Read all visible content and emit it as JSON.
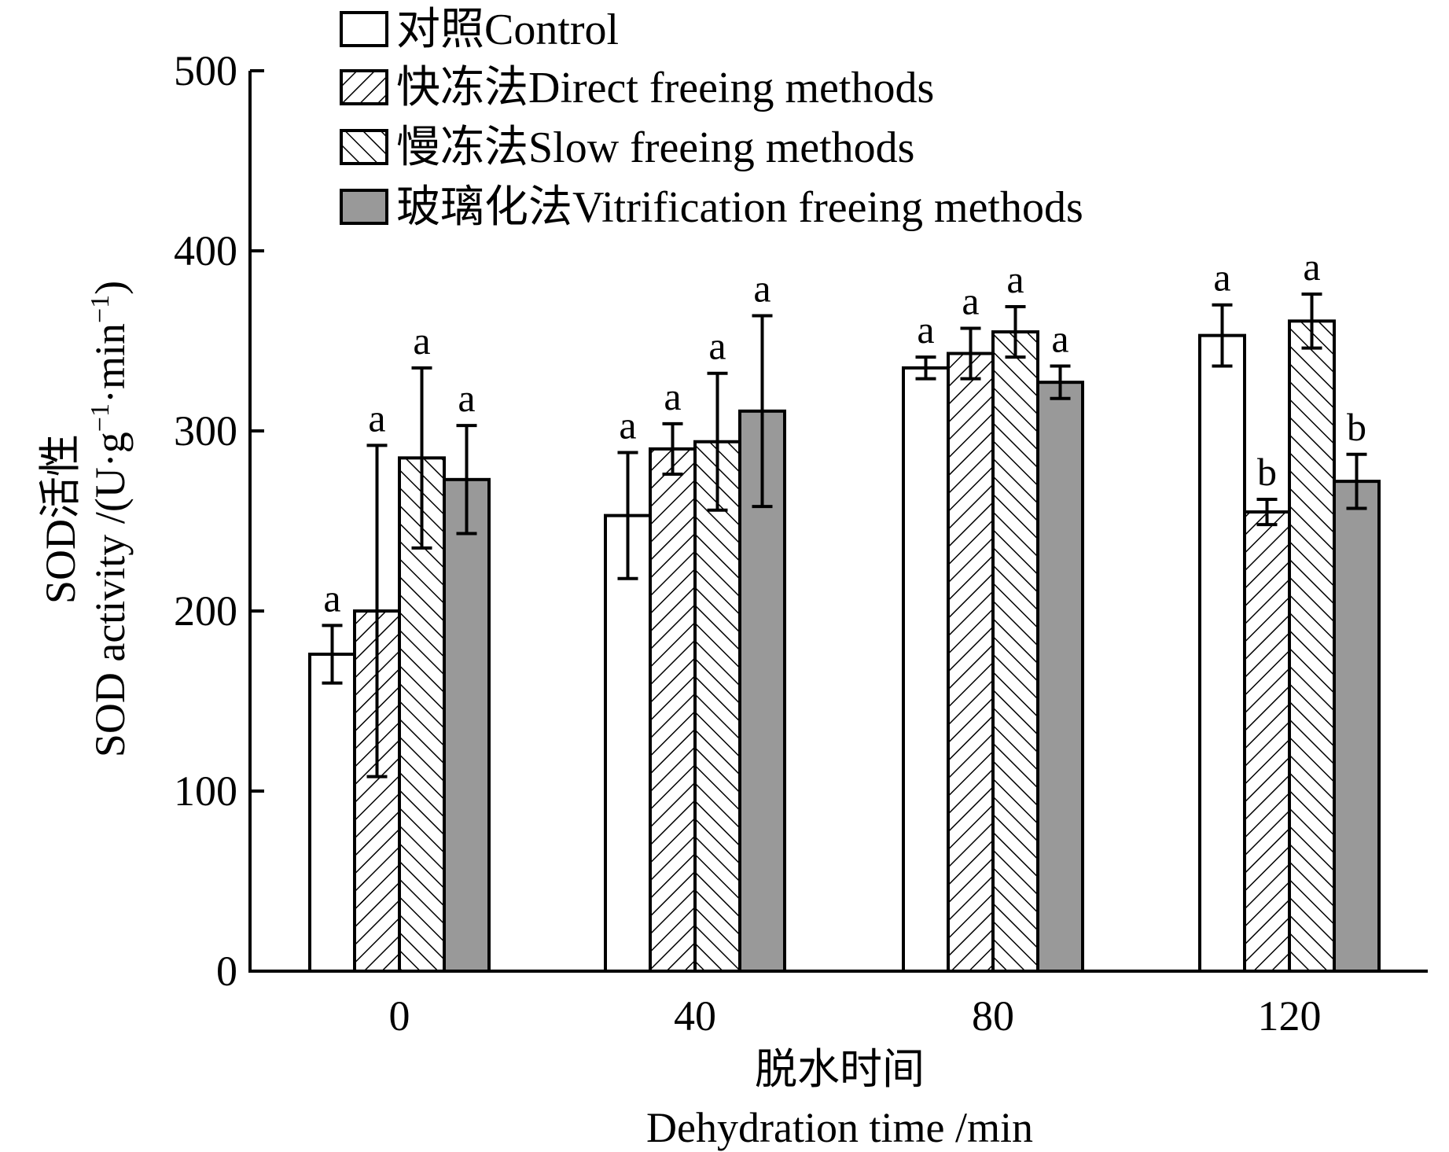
{
  "chart_data": {
    "type": "bar",
    "categories": [
      "0",
      "40",
      "80",
      "120"
    ],
    "series": [
      {
        "name": "对照Control",
        "values": [
          176,
          253,
          335,
          353
        ],
        "errors": [
          16,
          35,
          6,
          17
        ],
        "letters": [
          "a",
          "a",
          "a",
          "a"
        ],
        "fill": "white"
      },
      {
        "name": "快冻法Direct freeing methods",
        "values": [
          200,
          290,
          343,
          255
        ],
        "errors": [
          92,
          14,
          14,
          7
        ],
        "letters": [
          "a",
          "a",
          "a",
          "b"
        ],
        "fill": "hatch-forward"
      },
      {
        "name": "慢冻法Slow freeing methods",
        "values": [
          285,
          294,
          355,
          361
        ],
        "errors": [
          50,
          38,
          14,
          15
        ],
        "letters": [
          "a",
          "a",
          "a",
          "a"
        ],
        "fill": "hatch-back"
      },
      {
        "name": "玻璃化法Vitrification freeing methods",
        "values": [
          273,
          311,
          327,
          272
        ],
        "errors": [
          30,
          53,
          9,
          15
        ],
        "letters": [
          "a",
          "a",
          "a",
          "b"
        ],
        "fill": "#999999"
      }
    ],
    "ylabel_cn": "SOD活性",
    "ylabel_en": "SOD activity /(U·g",
    "ylabel_sup1": "−1",
    "ylabel_mid": "·min",
    "ylabel_sup2": "−1",
    "ylabel_end": ")",
    "xlabel_cn": "脱水时间",
    "xlabel_en": "Dehydration time /min",
    "ylim": [
      0,
      500
    ],
    "yticks": [
      0,
      100,
      200,
      300,
      400,
      500
    ],
    "grid": false,
    "legend_position": "top"
  },
  "colors": {
    "axis": "#000000",
    "gray_bar": "#999999"
  }
}
